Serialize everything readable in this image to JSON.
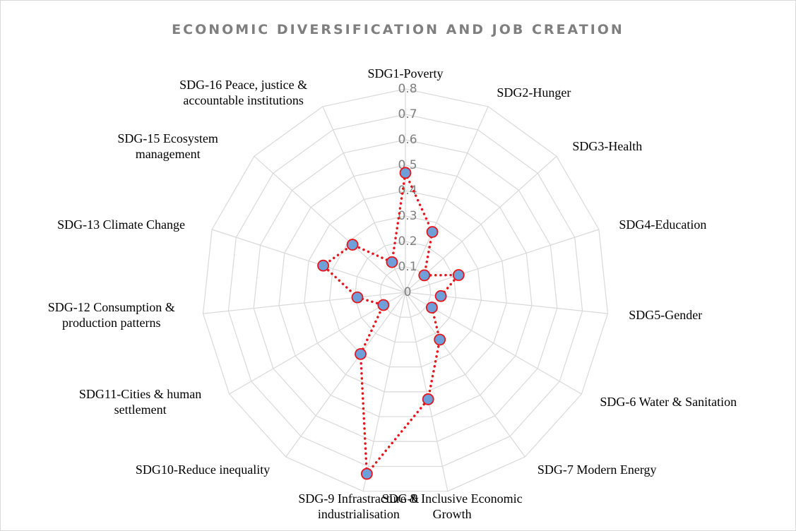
{
  "chart_data": {
    "type": "radar",
    "title": "ECONOMIC DIVERSIFICATION AND JOB CREATION",
    "categories": [
      "SDG1-Poverty",
      "SDG2-Hunger",
      "SDG3-Health",
      "SDG4-Education",
      "SDG5-Gender",
      "SDG-6 Water & Sanitation",
      "SDG-7 Modern Energy",
      "SDG-8 Inclusive Economic Growth",
      "SDG-9 Infrastracture & industrialisation",
      "SDG10-Reduce inequality",
      "SDG11-Cities & human settlement",
      "SDG-12 Consumption & production patterns",
      "SDG-13 Climate Change",
      "SDG-15 Ecosystem management",
      "SDG-16 Peace, justice & accountable institutions"
    ],
    "values": [
      0.47,
      0.26,
      0.1,
      0.22,
      0.14,
      0.12,
      0.23,
      0.43,
      0.73,
      0.3,
      0.1,
      0.19,
      0.34,
      0.28,
      0.13
    ],
    "line_color": "#e8141b",
    "marker_color": "#6f9fd8",
    "ylim": [
      0,
      0.8
    ],
    "yticks": [
      0,
      0.1,
      0.2,
      0.3,
      0.4,
      0.5,
      0.6,
      0.7,
      0.8
    ],
    "grid": true
  }
}
